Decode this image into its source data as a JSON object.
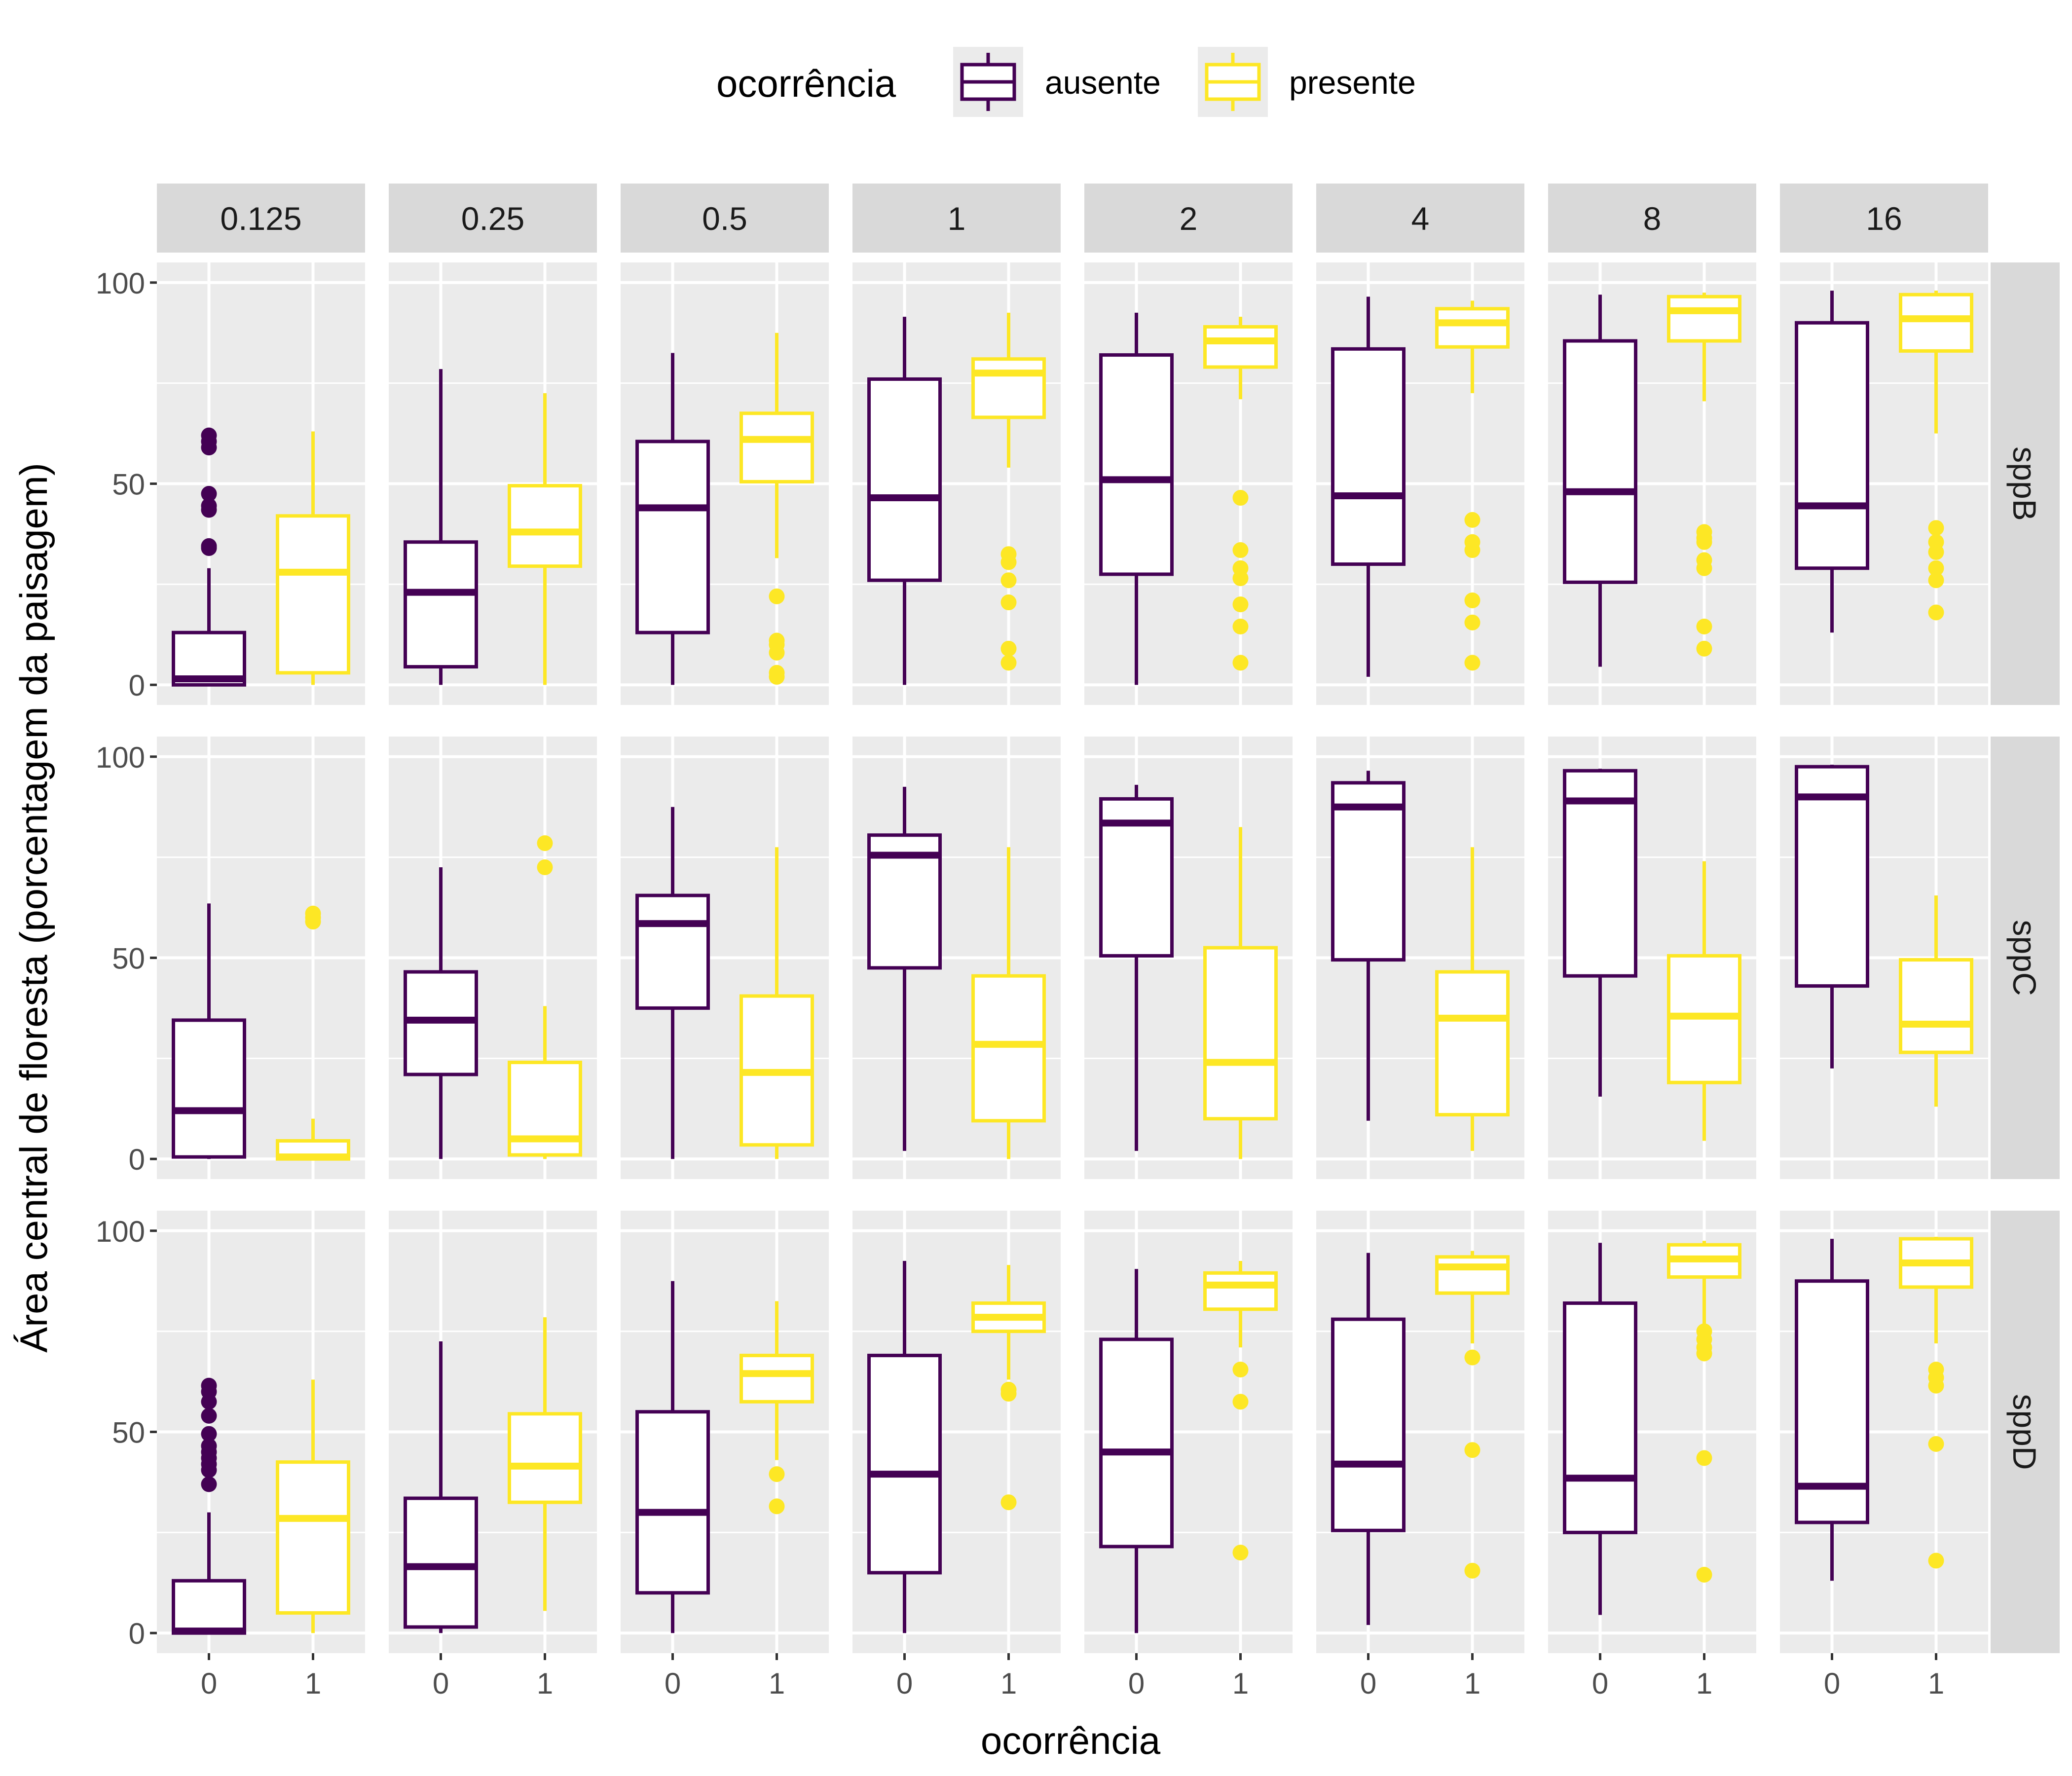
{
  "chart_data": {
    "type": "boxplot",
    "legend": {
      "title": "ocorrência",
      "position": "top",
      "entries": [
        {
          "label": "ausente",
          "color": "#440154"
        },
        {
          "label": "presente",
          "color": "#FDE725"
        }
      ]
    },
    "xlabel": "ocorrência",
    "ylabel": "Área central de floresta (porcentagem da paisagem)",
    "x_categories": [
      "0",
      "1"
    ],
    "ylim": [
      -5,
      105
    ],
    "yticks": [
      0,
      50,
      100
    ],
    "grid": true,
    "panel_background": "#EBEBEB",
    "strip_background": "#D9D9D9",
    "facet_columns": [
      "0.125",
      "0.25",
      "0.5",
      "1",
      "2",
      "4",
      "8",
      "16"
    ],
    "facet_rows": [
      "sppB",
      "sppC",
      "sppD"
    ],
    "panels": [
      [
        [
          {
            "q1": 0,
            "median": 1.5,
            "q3": 13,
            "lo": 0,
            "hi": 29,
            "out": [
              34,
              34.5,
              43.5,
              44.5,
              47.5,
              59,
              60.5,
              62
            ]
          },
          {
            "q1": 3,
            "median": 28,
            "q3": 42,
            "lo": 0,
            "hi": 63,
            "out": []
          }
        ],
        [
          {
            "q1": 4.5,
            "median": 23,
            "q3": 35.5,
            "lo": 0,
            "hi": 78.5,
            "out": []
          },
          {
            "q1": 29.5,
            "median": 38,
            "q3": 49.5,
            "lo": 0,
            "hi": 72.5,
            "out": []
          }
        ],
        [
          {
            "q1": 13,
            "median": 44,
            "q3": 60.5,
            "lo": 0,
            "hi": 82.5,
            "out": []
          },
          {
            "q1": 50.5,
            "median": 61,
            "q3": 67.5,
            "lo": 31.5,
            "hi": 87.5,
            "out": [
              2,
              3,
              8,
              10,
              11,
              22
            ]
          }
        ],
        [
          {
            "q1": 26,
            "median": 46.5,
            "q3": 76,
            "lo": 0,
            "hi": 91.5,
            "out": []
          },
          {
            "q1": 66.5,
            "median": 77.5,
            "q3": 81,
            "lo": 54,
            "hi": 92.5,
            "out": [
              5.5,
              9,
              20.5,
              26,
              30.5,
              32.5
            ]
          }
        ],
        [
          {
            "q1": 27.5,
            "median": 51,
            "q3": 82,
            "lo": 0,
            "hi": 92.5,
            "out": []
          },
          {
            "q1": 79,
            "median": 85.5,
            "q3": 89,
            "lo": 71,
            "hi": 91.5,
            "out": [
              5.5,
              14.5,
              20,
              26.5,
              29,
              33.5,
              46.5
            ]
          }
        ],
        [
          {
            "q1": 30,
            "median": 47,
            "q3": 83.5,
            "lo": 2,
            "hi": 96.5,
            "out": []
          },
          {
            "q1": 84,
            "median": 90,
            "q3": 93.5,
            "lo": 72.5,
            "hi": 95.5,
            "out": [
              5.5,
              15.5,
              21,
              33.5,
              35.5,
              41
            ]
          }
        ],
        [
          {
            "q1": 25.5,
            "median": 48,
            "q3": 85.5,
            "lo": 4.5,
            "hi": 97,
            "out": []
          },
          {
            "q1": 85.5,
            "median": 93,
            "q3": 96.5,
            "lo": 70.5,
            "hi": 97.5,
            "out": [
              9,
              14.5,
              29,
              31,
              35.5,
              36.5,
              38
            ]
          }
        ],
        [
          {
            "q1": 29,
            "median": 44.5,
            "q3": 90,
            "lo": 13,
            "hi": 98,
            "out": []
          },
          {
            "q1": 83,
            "median": 91,
            "q3": 97,
            "lo": 62.5,
            "hi": 98,
            "out": [
              18,
              26,
              29,
              33,
              35.5,
              39
            ]
          }
        ]
      ],
      [
        [
          {
            "q1": 0.5,
            "median": 12,
            "q3": 34.5,
            "lo": 0,
            "hi": 63.5,
            "out": []
          },
          {
            "q1": 0,
            "median": 0.5,
            "q3": 4.5,
            "lo": 0,
            "hi": 10,
            "out": [
              59,
              60,
              61
            ]
          }
        ],
        [
          {
            "q1": 21,
            "median": 34.5,
            "q3": 46.5,
            "lo": 0,
            "hi": 72.5,
            "out": []
          },
          {
            "q1": 1,
            "median": 5,
            "q3": 24,
            "lo": 0,
            "hi": 38,
            "out": [
              72.5,
              78.5
            ]
          }
        ],
        [
          {
            "q1": 37.5,
            "median": 58.5,
            "q3": 65.5,
            "lo": 0,
            "hi": 87.5,
            "out": []
          },
          {
            "q1": 3.5,
            "median": 21.5,
            "q3": 40.5,
            "lo": 0,
            "hi": 77.5,
            "out": []
          }
        ],
        [
          {
            "q1": 47.5,
            "median": 75.5,
            "q3": 80.5,
            "lo": 2,
            "hi": 92.5,
            "out": []
          },
          {
            "q1": 9.5,
            "median": 28.5,
            "q3": 45.5,
            "lo": 0,
            "hi": 77.5,
            "out": []
          }
        ],
        [
          {
            "q1": 50.5,
            "median": 83.5,
            "q3": 89.5,
            "lo": 2,
            "hi": 93,
            "out": []
          },
          {
            "q1": 10,
            "median": 24,
            "q3": 52.5,
            "lo": 0,
            "hi": 82.5,
            "out": []
          }
        ],
        [
          {
            "q1": 49.5,
            "median": 87.5,
            "q3": 93.5,
            "lo": 9.5,
            "hi": 96.5,
            "out": []
          },
          {
            "q1": 11,
            "median": 35,
            "q3": 46.5,
            "lo": 2,
            "hi": 77.5,
            "out": []
          }
        ],
        [
          {
            "q1": 45.5,
            "median": 89,
            "q3": 96.5,
            "lo": 15.5,
            "hi": 97,
            "out": []
          },
          {
            "q1": 19,
            "median": 35.5,
            "q3": 50.5,
            "lo": 4.5,
            "hi": 74,
            "out": []
          }
        ],
        [
          {
            "q1": 43,
            "median": 90,
            "q3": 97.5,
            "lo": 22.5,
            "hi": 98,
            "out": []
          },
          {
            "q1": 26.5,
            "median": 33.5,
            "q3": 49.5,
            "lo": 13,
            "hi": 65.5,
            "out": []
          }
        ]
      ],
      [
        [
          {
            "q1": 0,
            "median": 0.5,
            "q3": 13,
            "lo": 0,
            "hi": 30,
            "out": [
              37,
              40.5,
              42,
              43.5,
              45,
              46.5,
              49.5,
              54,
              57.5,
              60,
              61.5
            ]
          },
          {
            "q1": 5,
            "median": 28.5,
            "q3": 42.5,
            "lo": 0,
            "hi": 63,
            "out": []
          }
        ],
        [
          {
            "q1": 1.5,
            "median": 16.5,
            "q3": 33.5,
            "lo": 0,
            "hi": 72.5,
            "out": []
          },
          {
            "q1": 32.5,
            "median": 41.5,
            "q3": 54.5,
            "lo": 5.5,
            "hi": 78.5,
            "out": []
          }
        ],
        [
          {
            "q1": 10,
            "median": 30,
            "q3": 55,
            "lo": 0,
            "hi": 87.5,
            "out": []
          },
          {
            "q1": 57.5,
            "median": 64.5,
            "q3": 69,
            "lo": 43,
            "hi": 82.5,
            "out": [
              31.5,
              39.5
            ]
          }
        ],
        [
          {
            "q1": 15,
            "median": 39.5,
            "q3": 69,
            "lo": 0,
            "hi": 92.5,
            "out": []
          },
          {
            "q1": 75,
            "median": 78.5,
            "q3": 82,
            "lo": 63,
            "hi": 91.5,
            "out": [
              32.5,
              59.5,
              60.5
            ]
          }
        ],
        [
          {
            "q1": 21.5,
            "median": 45,
            "q3": 73,
            "lo": 0,
            "hi": 90.5,
            "out": []
          },
          {
            "q1": 80.5,
            "median": 86.5,
            "q3": 89.5,
            "lo": 71,
            "hi": 92.5,
            "out": [
              20,
              57.5,
              65.5
            ]
          }
        ],
        [
          {
            "q1": 25.5,
            "median": 42,
            "q3": 78,
            "lo": 2,
            "hi": 94.5,
            "out": []
          },
          {
            "q1": 84.5,
            "median": 91,
            "q3": 93.5,
            "lo": 72,
            "hi": 95,
            "out": [
              15.5,
              45.5,
              68.5
            ]
          }
        ],
        [
          {
            "q1": 25,
            "median": 38.5,
            "q3": 82,
            "lo": 4.5,
            "hi": 97,
            "out": []
          },
          {
            "q1": 88.5,
            "median": 93,
            "q3": 96.5,
            "lo": 76,
            "hi": 97.5,
            "out": [
              14.5,
              43.5,
              69.5,
              71,
              73,
              75
            ]
          }
        ],
        [
          {
            "q1": 27.5,
            "median": 36.5,
            "q3": 87.5,
            "lo": 13,
            "hi": 98,
            "out": []
          },
          {
            "q1": 86,
            "median": 92,
            "q3": 98,
            "lo": 72,
            "hi": 98.5,
            "out": [
              18,
              47,
              61.5,
              63.5,
              65.5
            ]
          }
        ]
      ]
    ]
  }
}
